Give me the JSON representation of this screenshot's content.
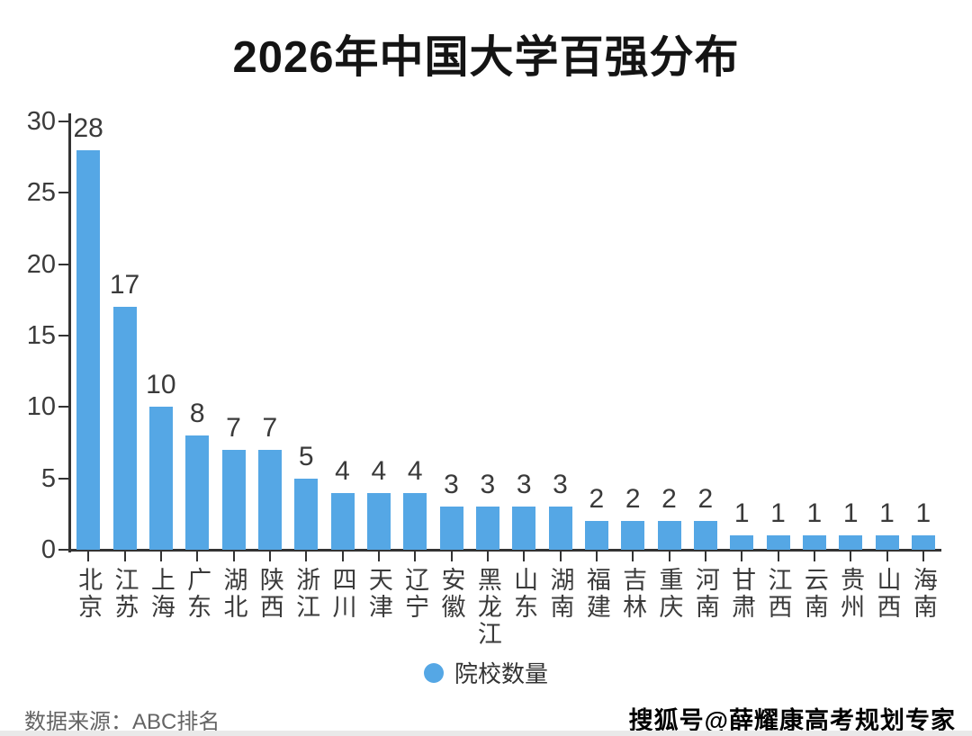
{
  "chart_data": {
    "type": "bar",
    "title": "2026年中国大学百强分布",
    "categories": [
      "北京",
      "江苏",
      "上海",
      "广东",
      "湖北",
      "陕西",
      "浙江",
      "四川",
      "天津",
      "辽宁",
      "安徽",
      "黑龙江",
      "山东",
      "湖南",
      "福建",
      "吉林",
      "重庆",
      "河南",
      "甘肃",
      "江西",
      "云南",
      "贵州",
      "山西",
      "海南"
    ],
    "values": [
      28,
      17,
      10,
      8,
      7,
      7,
      5,
      4,
      4,
      4,
      3,
      3,
      3,
      3,
      2,
      2,
      2,
      2,
      1,
      1,
      1,
      1,
      1,
      1
    ],
    "xlabel": "",
    "ylabel": "",
    "ylim": [
      0,
      30
    ],
    "yticks": [
      0,
      5,
      10,
      15,
      20,
      25,
      30
    ],
    "grid": false,
    "legend_position": "bottom",
    "legend": [
      {
        "label": "院校数量",
        "color": "#55a7e5"
      }
    ],
    "bar_color": "#55a7e5",
    "axis_color": "#333333",
    "text_color": "#3a3a3a"
  },
  "footer": {
    "source": "数据来源：ABC排名",
    "watermark": "搜狐号@薛耀康高考规划专家"
  }
}
